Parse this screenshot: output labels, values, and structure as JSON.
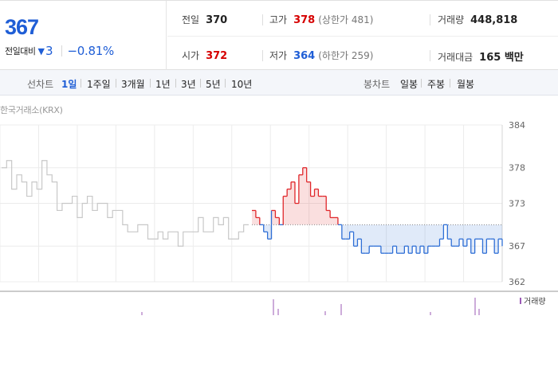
{
  "summary": {
    "current_price": "367",
    "change_label": "전일대비",
    "change_arrow_icon": "down-triangle-icon",
    "change_value": "3",
    "change_rate": "−0.81%",
    "prev_close_label": "전일",
    "prev_close": "370",
    "high_label": "고가",
    "high": "378",
    "upper_limit": "(상한가 481)",
    "volume_label": "거래량",
    "volume": "448,818",
    "open_label": "시가",
    "open": "372",
    "low_label": "저가",
    "low": "364",
    "lower_limit": "(하한가 259)",
    "amount_label": "거래대금",
    "amount": "165 백만",
    "colors": {
      "up": "#d60000",
      "down": "#1f5ed6"
    }
  },
  "tabs": {
    "line_label": "선차트",
    "line_periods": [
      "1일",
      "1주일",
      "3개월",
      "1년",
      "3년",
      "5년",
      "10년"
    ],
    "active_period": "1일",
    "candle_label": "봉차트",
    "candle_periods": [
      "일봉",
      "주봉",
      "월봉"
    ]
  },
  "chart": {
    "market_label": "한국거래소(KRX)",
    "volume_legend": "거래량"
  },
  "chart_data": {
    "type": "line",
    "title": "",
    "xlabel": "",
    "ylabel": "",
    "ylim": [
      362,
      384
    ],
    "yticks": [
      "384",
      "378",
      "373",
      "367",
      "362"
    ],
    "reference_price": 370,
    "grid": true,
    "colors": {
      "previous_session": "#c8c8c8",
      "above_reference": "#e0262a",
      "below_reference": "#2f6fd6"
    },
    "previous_session": [
      378,
      379,
      375,
      377,
      376,
      374,
      376,
      375,
      379,
      377,
      376,
      372,
      373,
      373,
      374,
      371,
      373,
      374,
      372,
      373,
      373,
      371,
      372,
      372,
      370,
      369,
      369,
      370,
      370,
      368,
      368,
      369,
      368,
      369,
      369,
      367,
      369,
      369,
      369,
      371,
      369,
      369,
      371,
      370,
      371,
      368,
      368,
      369,
      370,
      370
    ],
    "today": [
      372,
      371,
      370,
      369,
      368,
      372,
      371,
      370,
      374,
      375,
      376,
      373,
      377,
      378,
      376,
      374,
      375,
      374,
      374,
      372,
      371,
      371,
      370,
      368,
      368,
      369,
      367,
      368,
      366,
      366,
      367,
      367,
      367,
      366,
      366,
      366,
      367,
      366,
      366,
      367,
      366,
      367,
      366,
      367,
      366,
      367,
      367,
      367,
      368,
      370,
      368,
      367,
      367,
      368,
      367,
      368,
      366,
      368,
      368,
      366,
      368,
      368,
      366,
      368,
      367
    ]
  }
}
